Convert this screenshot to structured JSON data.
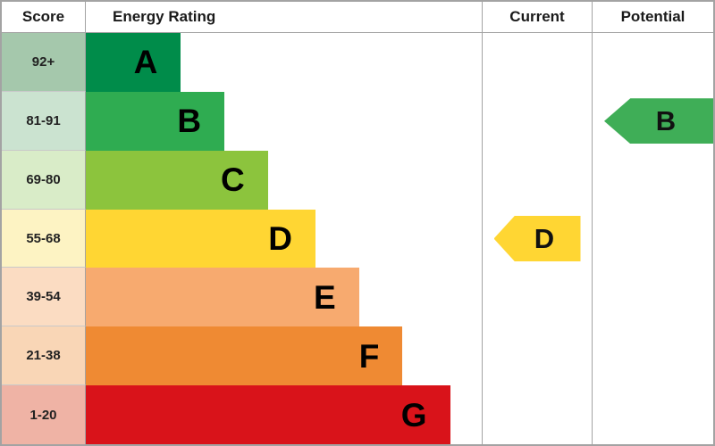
{
  "header": {
    "score": "Score",
    "energy_rating": "Energy Rating",
    "current": "Current",
    "potential": "Potential"
  },
  "chart_data": {
    "type": "bar",
    "title": "Energy Rating (EPC)",
    "orientation": "horizontal",
    "categories": [
      "A",
      "B",
      "C",
      "D",
      "E",
      "F",
      "G"
    ],
    "bands": [
      {
        "letter": "A",
        "score": "92+",
        "color": "#008c4a",
        "tint": "#a5c8ac",
        "width": "24%"
      },
      {
        "letter": "B",
        "score": "81-91",
        "color": "#2fac51",
        "tint": "#cbe3d0",
        "width": "35%"
      },
      {
        "letter": "C",
        "score": "69-80",
        "color": "#8cc43d",
        "tint": "#d9ecc8",
        "width": "46%"
      },
      {
        "letter": "D",
        "score": "55-68",
        "color": "#ffd633",
        "tint": "#fdf3c3",
        "width": "58%"
      },
      {
        "letter": "E",
        "score": "39-54",
        "color": "#f7aa6f",
        "tint": "#fbdcc2",
        "width": "69%"
      },
      {
        "letter": "F",
        "score": "21-38",
        "color": "#ef8a33",
        "tint": "#f9d6b6",
        "width": "80%"
      },
      {
        "letter": "G",
        "score": "1-20",
        "color": "#d9131a",
        "tint": "#efb3a5",
        "width": "92%"
      }
    ],
    "current": {
      "label": "D",
      "score_band": "55-68",
      "color": "#ffd633"
    },
    "potential": {
      "label": "B",
      "score_band": "81-91",
      "color": "#3fae57"
    }
  }
}
